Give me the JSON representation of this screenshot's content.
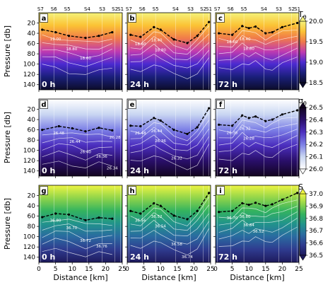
{
  "chart_data": {
    "type": "heatmap",
    "xlabel": "Distance [km]",
    "ylabel": "Pressure [db]",
    "xlim": [
      0,
      25
    ],
    "ylim": [
      150,
      0
    ],
    "x_ticks": [
      "0",
      "5",
      "10",
      "15",
      "20",
      "25"
    ],
    "y_ticks": [
      "20",
      "40",
      "60",
      "80",
      "100",
      "120",
      "140"
    ],
    "y_tick_values": [
      20,
      40,
      60,
      80,
      100,
      120,
      140
    ],
    "x_tick_values": [
      0,
      5,
      10,
      15,
      20,
      25
    ],
    "stations": [
      {
        "name": "S7",
        "x": 0.5
      },
      {
        "name": "S6",
        "x": 4.5
      },
      {
        "name": "S5",
        "x": 8.5
      },
      {
        "name": "S4",
        "x": 14.5
      },
      {
        "name": "S3",
        "x": 19
      },
      {
        "name": "S2",
        "x": 22.8
      },
      {
        "name": "S1",
        "x": 24.5
      }
    ],
    "rows": [
      {
        "variable": "T",
        "variable_sub": "θ",
        "colorbar_ticks": [
          "20.0",
          "19.5",
          "19.0",
          "18.5"
        ],
        "colorbar_range": [
          18.5,
          20.0
        ],
        "colors": [
          "#0c0c2a",
          "#1a1f7a",
          "#4a2ad0",
          "#c03bb0",
          "#f07a4a",
          "#fbc234",
          "#f5f27a"
        ]
      },
      {
        "variable": "σ",
        "variable_sub": "θ",
        "colorbar_ticks": [
          "26.5",
          "26.4",
          "26.3",
          "26.2",
          "26.1",
          "26.0"
        ],
        "colorbar_range": [
          26.0,
          26.5
        ],
        "colors": [
          "#ffffff",
          "#c9d6f2",
          "#7c7fe6",
          "#4c2fbf",
          "#2a0f6a",
          "#120420"
        ]
      },
      {
        "variable": "S",
        "variable_sub": "",
        "colorbar_ticks": [
          "37.0",
          "36.9",
          "36.8",
          "36.7",
          "36.6",
          "36.5"
        ],
        "colorbar_range": [
          36.5,
          37.0
        ],
        "colors": [
          "#1e1a5c",
          "#2f3b8f",
          "#2a6aa0",
          "#21938c",
          "#33b35f",
          "#8fd44a",
          "#eef542"
        ]
      }
    ],
    "panels": [
      {
        "letter": "a",
        "time": "0 h",
        "row": 0,
        "col": 0,
        "mld": [
          [
            1,
            33
          ],
          [
            5,
            38
          ],
          [
            9,
            45
          ],
          [
            14,
            49
          ],
          [
            18,
            45
          ],
          [
            22,
            38
          ]
        ],
        "contour_labels": [
          "19.00",
          "18.80",
          "18.60"
        ]
      },
      {
        "letter": "b",
        "time": "24 h",
        "row": 0,
        "col": 1,
        "mld": [
          [
            1,
            43
          ],
          [
            4,
            47
          ],
          [
            8,
            28
          ],
          [
            10,
            33
          ],
          [
            14,
            52
          ],
          [
            18,
            59
          ],
          [
            21,
            45
          ],
          [
            24.5,
            18
          ]
        ],
        "contour_labels": [
          "18.60",
          "18.40",
          "18.80"
        ]
      },
      {
        "letter": "c",
        "time": "72 h",
        "row": 0,
        "col": 2,
        "mld": [
          [
            1,
            40
          ],
          [
            5,
            43
          ],
          [
            8,
            26
          ],
          [
            10,
            30
          ],
          [
            12,
            27
          ],
          [
            15,
            40
          ],
          [
            17,
            38
          ],
          [
            20,
            28
          ],
          [
            24.5,
            20
          ]
        ],
        "contour_labels": [
          "18.60",
          "18.40",
          "18.80"
        ]
      },
      {
        "letter": "d",
        "time": "0 h",
        "row": 1,
        "col": 0,
        "mld": [
          [
            1,
            60
          ],
          [
            6,
            53
          ],
          [
            10,
            57
          ],
          [
            14,
            63
          ],
          [
            18,
            56
          ],
          [
            22,
            61
          ]
        ],
        "contour_labels": [
          "26.48",
          "26.44",
          "26.40",
          "26.36",
          "26.34",
          "26.28"
        ]
      },
      {
        "letter": "e",
        "time": "24 h",
        "row": 1,
        "col": 1,
        "mld": [
          [
            1,
            52
          ],
          [
            4,
            53
          ],
          [
            8,
            37
          ],
          [
            10,
            42
          ],
          [
            14,
            60
          ],
          [
            18,
            68
          ],
          [
            21,
            55
          ],
          [
            24.5,
            18
          ]
        ],
        "contour_labels": [
          "26.48",
          "26.44",
          "26.36",
          "26.32"
        ]
      },
      {
        "letter": "f",
        "time": "72 h",
        "row": 1,
        "col": 2,
        "mld": [
          [
            1,
            50
          ],
          [
            5,
            52
          ],
          [
            8,
            32
          ],
          [
            10,
            37
          ],
          [
            12,
            34
          ],
          [
            15,
            43
          ],
          [
            17,
            40
          ],
          [
            20,
            30
          ],
          [
            24.5,
            22
          ]
        ],
        "contour_labels": [
          "26.36",
          "26.32",
          "26.28"
        ]
      },
      {
        "letter": "g",
        "time": "0 h",
        "row": 2,
        "col": 0,
        "mld": [
          [
            1,
            62
          ],
          [
            5,
            55
          ],
          [
            9,
            57
          ],
          [
            14,
            68
          ],
          [
            18,
            63
          ],
          [
            22,
            65
          ]
        ],
        "contour_labels": [
          "36.80",
          "36.70",
          "36.72",
          "36.76"
        ]
      },
      {
        "letter": "h",
        "time": "24 h",
        "row": 2,
        "col": 1,
        "mld": [
          [
            1,
            50
          ],
          [
            4,
            55
          ],
          [
            8,
            35
          ],
          [
            10,
            40
          ],
          [
            14,
            59
          ],
          [
            18,
            66
          ],
          [
            21,
            50
          ],
          [
            24.5,
            15
          ]
        ],
        "contour_labels": [
          "36.56",
          "36.52",
          "36.54",
          "36.58",
          "36.74"
        ]
      },
      {
        "letter": "i",
        "time": "72 h",
        "row": 2,
        "col": 2,
        "mld": [
          [
            1,
            52
          ],
          [
            5,
            50
          ],
          [
            8,
            35
          ],
          [
            10,
            38
          ],
          [
            12,
            34
          ],
          [
            15,
            40
          ],
          [
            17,
            37
          ],
          [
            20,
            28
          ],
          [
            24.5,
            15
          ]
        ],
        "contour_labels": [
          "36.70",
          "36.80",
          "36.84",
          "36.52"
        ]
      }
    ]
  }
}
